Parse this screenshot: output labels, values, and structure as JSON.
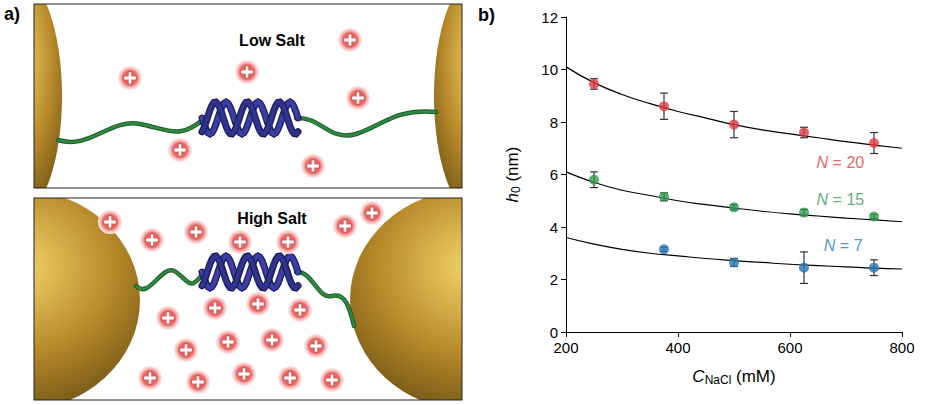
{
  "diagram": {
    "panel_label": "a)",
    "panels": [
      {
        "title": "Low Salt"
      },
      {
        "title": "High Salt"
      }
    ]
  },
  "chart_data": {
    "type": "scatter",
    "panel_label": "b)",
    "x_label": {
      "symbol": "C",
      "subscript": "NaCl",
      "unit": "(mM)"
    },
    "y_label": {
      "symbol": "h",
      "subscript": "0",
      "unit": "(nm)"
    },
    "xlim": [
      200,
      800
    ],
    "xticks": [
      200,
      400,
      600,
      800
    ],
    "ylim": [
      0,
      12
    ],
    "yticks": [
      0,
      2,
      4,
      6,
      8,
      10,
      12
    ],
    "grid": false,
    "series": [
      {
        "name": "N = 20",
        "color": "#e0393e",
        "marker": "circle",
        "x": [
          250,
          375,
          500,
          625,
          750
        ],
        "values": [
          9.45,
          8.6,
          7.9,
          7.6,
          7.2
        ],
        "errors": [
          0.2,
          0.5,
          0.5,
          0.2,
          0.4
        ],
        "label_x": 690,
        "label_y": 6.45,
        "fit": {
          "color": "#000000",
          "x": [
            200,
            250,
            300,
            350,
            400,
            450,
            500,
            550,
            600,
            650,
            700,
            750,
            800
          ],
          "values": [
            10.1,
            9.5,
            9.05,
            8.7,
            8.4,
            8.15,
            7.9,
            7.7,
            7.55,
            7.4,
            7.25,
            7.12,
            7.0
          ]
        }
      },
      {
        "name": "N = 15",
        "color": "#2e9e4f",
        "marker": "circle",
        "x": [
          250,
          375,
          500,
          625,
          750
        ],
        "values": [
          5.8,
          5.15,
          4.75,
          4.55,
          4.4
        ],
        "errors": [
          0.3,
          0.15,
          0.1,
          0.12,
          0.08
        ],
        "label_x": 690,
        "label_y": 5.05,
        "fit": {
          "color": "#000000",
          "x": [
            200,
            250,
            300,
            350,
            400,
            450,
            500,
            550,
            600,
            650,
            700,
            750,
            800
          ],
          "values": [
            6.1,
            5.7,
            5.4,
            5.2,
            5.0,
            4.85,
            4.72,
            4.6,
            4.5,
            4.42,
            4.34,
            4.27,
            4.2
          ]
        }
      },
      {
        "name": "N = 7",
        "color": "#2878b5",
        "marker": "circle",
        "x": [
          375,
          500,
          625,
          750
        ],
        "values": [
          3.15,
          2.65,
          2.45,
          2.45
        ],
        "errors": [
          0.08,
          0.15,
          0.6,
          0.3
        ],
        "label_x": 695,
        "label_y": 3.3,
        "fit": {
          "color": "#000000",
          "x": [
            200,
            250,
            300,
            350,
            400,
            450,
            500,
            550,
            600,
            650,
            700,
            750,
            800
          ],
          "values": [
            3.6,
            3.35,
            3.15,
            3.0,
            2.9,
            2.8,
            2.72,
            2.65,
            2.58,
            2.53,
            2.48,
            2.43,
            2.4
          ]
        }
      }
    ]
  }
}
